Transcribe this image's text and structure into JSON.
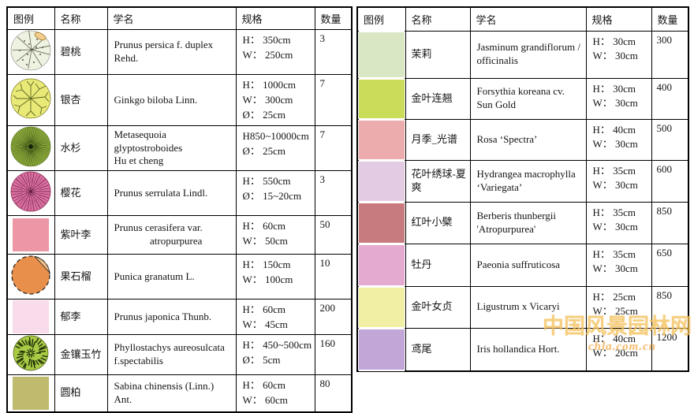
{
  "header": {
    "legend": "图例",
    "name": "名称",
    "latin": "学名",
    "spec": "规格",
    "qty": "数量"
  },
  "left_table": {
    "rows": [
      {
        "name": "碧桃",
        "latin": [
          "Prunus persica f. duplex Rehd."
        ],
        "spec": [
          "H： 350cm",
          "W： 250cm"
        ],
        "qty": "3",
        "legend": {
          "kind": "peach",
          "fill": "#eef2e0",
          "stroke": "#4a4a38",
          "accent": "#f2cd8c"
        }
      },
      {
        "name": "银杏",
        "latin": [
          "Ginkgo biloba Linn."
        ],
        "spec": [
          "H： 1000cm",
          "W： 300cm",
          "Ø： 25cm"
        ],
        "qty": "7",
        "legend": {
          "kind": "ginkgo",
          "fill": "#e9e978",
          "stroke": "#5c6620"
        }
      },
      {
        "name": "水杉",
        "latin": [
          "Metasequoia glyptostroboides",
          "Hu et cheng"
        ],
        "spec": [
          "H850~10000cm",
          "Ø： 25cm"
        ],
        "qty": "7",
        "legend": {
          "kind": "fir",
          "fill": "#92b13e",
          "stroke": "#233309"
        }
      },
      {
        "name": "樱花",
        "latin": [
          "Prunus serrulata Lindl."
        ],
        "spec": [
          "H： 550cm",
          "Ø： 15~20cm"
        ],
        "qty": "3",
        "legend": {
          "kind": "cherry",
          "fill": "#dc70a2",
          "stroke": "#611a3c"
        }
      },
      {
        "name": "紫叶李",
        "latin": [
          "Prunus cerasifera var.",
          "              atropurpurea"
        ],
        "spec": [
          "H： 60cm",
          "W： 50cm"
        ],
        "qty": "50",
        "legend": {
          "kind": "square",
          "fill": "#ec96a6"
        }
      },
      {
        "name": "果石榴",
        "latin": [
          "Punica granatum L."
        ],
        "spec": [
          "H： 150cm",
          "W： 100cm"
        ],
        "qty": "10",
        "legend": {
          "kind": "pome",
          "fill": "#e98f4c",
          "stroke": "#2a2a2a",
          "accent": "#f4c287"
        }
      },
      {
        "name": "郁李",
        "latin": [
          "Prunus japonica Thunb."
        ],
        "spec": [
          "H： 60cm",
          "W： 45cm"
        ],
        "qty": "200",
        "legend": {
          "kind": "square",
          "fill": "#f8dcec"
        }
      },
      {
        "name": "金镶玉竹",
        "latin": [
          "Phyllostachys aureosulcata",
          "f.spectabilis"
        ],
        "spec": [
          "H： 450~500cm",
          "Ø： 5cm"
        ],
        "qty": "160",
        "legend": {
          "kind": "bamboo",
          "fill": "#a8ca45",
          "stroke": "#1d2b07"
        }
      },
      {
        "name": "圆柏",
        "latin": [
          "Sabina chinensis (Linn.) Ant."
        ],
        "spec": [
          "H： 60cm",
          "W： 60cm"
        ],
        "qty": "80",
        "legend": {
          "kind": "square",
          "fill": "#bfba6d"
        }
      }
    ]
  },
  "right_table": {
    "rows": [
      {
        "name": "茉莉",
        "latin": [
          "Jasminum grandiflorum /",
          "officinalis"
        ],
        "spec": [
          "H： 30cm",
          "W： 30cm"
        ],
        "qty": "300",
        "legend": {
          "kind": "swatch",
          "fill": "#d9e7c5"
        }
      },
      {
        "name": "金叶连翘",
        "latin": [
          "Forsythia koreana cv.",
          "Sun Gold"
        ],
        "spec": [
          "H： 30cm",
          "W： 30cm"
        ],
        "qty": "400",
        "legend": {
          "kind": "swatch",
          "fill": "#cbdc5b"
        }
      },
      {
        "name": "月季_光谱",
        "latin": [
          "Rosa ‘Spectra’"
        ],
        "spec": [
          "H： 40cm",
          "W： 30cm"
        ],
        "qty": "500",
        "legend": {
          "kind": "swatch",
          "fill": "#ecabac"
        }
      },
      {
        "name": "花叶绣球-夏爽",
        "latin": [
          "Hydrangea macrophylla",
          "‘Variegata’"
        ],
        "spec": [
          "H： 35cm",
          "W： 30cm"
        ],
        "qty": "600",
        "legend": {
          "kind": "swatch",
          "fill": "#e3cce3"
        }
      },
      {
        "name": "红叶小檗",
        "latin": [
          "Berberis thunbergii",
          "'Atropurpurea'"
        ],
        "spec": [
          "H： 35cm",
          "W： 30cm"
        ],
        "qty": "850",
        "legend": {
          "kind": "swatch",
          "fill": "#c87b7e"
        }
      },
      {
        "name": "牡丹",
        "latin": [
          "Paeonia suffruticosa"
        ],
        "spec": [
          "H： 35cm",
          "W： 30cm"
        ],
        "qty": "650",
        "legend": {
          "kind": "swatch",
          "fill": "#e5aacf"
        }
      },
      {
        "name": "金叶女贞",
        "latin": [
          "Ligustrum x Vicaryi"
        ],
        "spec": [
          "H： 25cm",
          "W： 25cm"
        ],
        "qty": "850",
        "legend": {
          "kind": "swatch",
          "fill": "#f1efa3"
        }
      },
      {
        "name": "鸢尾",
        "latin": [
          "Iris hollandica Hort."
        ],
        "spec": [
          "H： 40cm",
          "W： 20cm"
        ],
        "qty": "1200",
        "legend": {
          "kind": "swatch",
          "fill": "#c1a6d7"
        }
      }
    ]
  },
  "watermark": {
    "title": "中国风景园林网",
    "url": "chla.com.cn"
  }
}
